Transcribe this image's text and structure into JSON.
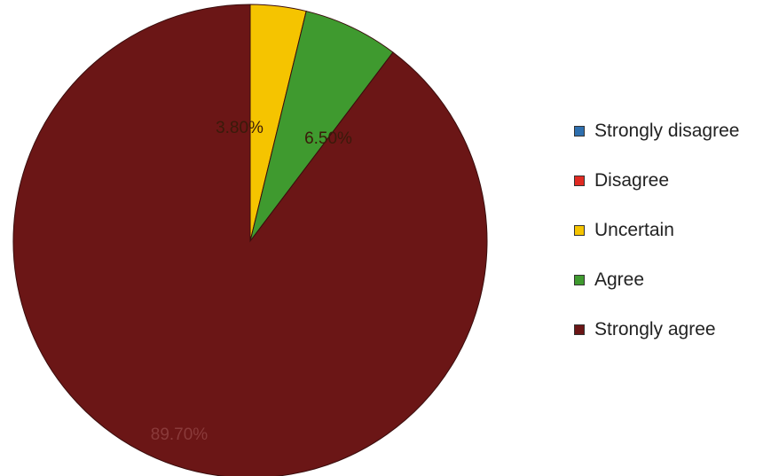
{
  "chart_data": {
    "type": "pie",
    "categories": [
      "Strongly disagree",
      "Disagree",
      "Uncertain",
      "Agree",
      "Strongly agree"
    ],
    "values": [
      0,
      0,
      3.8,
      6.5,
      89.7
    ],
    "labels": [
      "",
      "",
      "3.80%",
      "6.50%",
      "89.70%"
    ],
    "colors": [
      "#2e6fae",
      "#e02a22",
      "#f5c400",
      "#3f9a2f",
      "#6b1616"
    ],
    "label_colors": [
      "#222222",
      "#222222",
      "#3a1a0a",
      "#3a1a0a",
      "#8a3a3a"
    ],
    "start_angle_deg": 0,
    "direction": "clockwise",
    "legend_position": "right"
  }
}
